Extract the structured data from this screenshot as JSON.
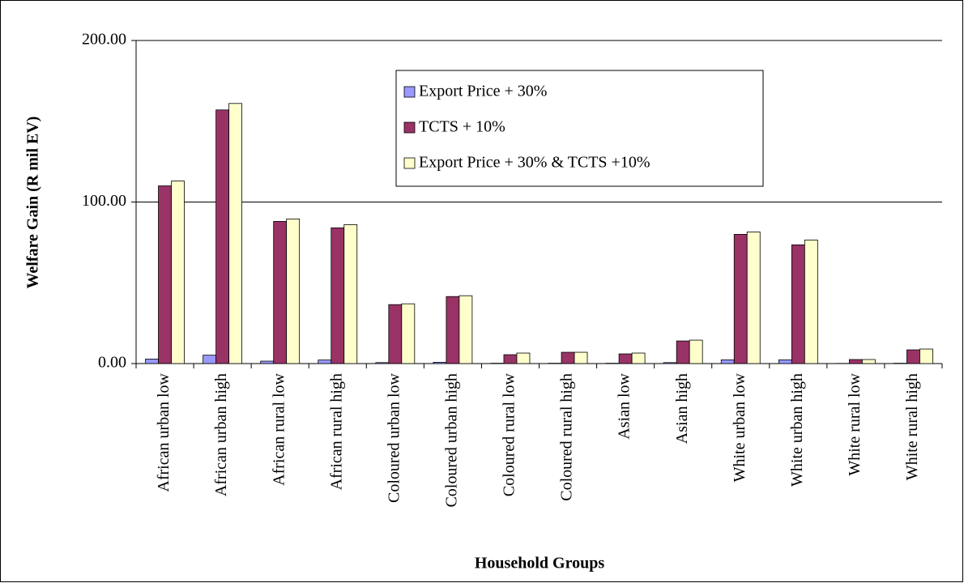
{
  "chart_data": {
    "type": "bar",
    "x_label": "Household Groups",
    "y_label": "Welfare Gain (R mil EV)",
    "categories": [
      "African urban low",
      "African urban high",
      "African rural low",
      "African rural high",
      "Coloured urban low",
      "Coloured urban high",
      "Coloured rural low",
      "Coloured rural high",
      "Asian low",
      "Asian high",
      "White urban low",
      "White urban high",
      "White rural low",
      "White rural high"
    ],
    "series": [
      {
        "name": "Export Price + 30%",
        "color": "#9999ff",
        "values": [
          2.8,
          5.2,
          1.5,
          2.2,
          0.6,
          0.8,
          0.2,
          0.2,
          0.2,
          0.6,
          2.3,
          2.3,
          0.1,
          0.2
        ]
      },
      {
        "name": "TCTS + 10%",
        "color": "#993366",
        "values": [
          110,
          157,
          88,
          84,
          36.5,
          41.5,
          5.5,
          7,
          6,
          14,
          80,
          73.5,
          2.5,
          8.5
        ]
      },
      {
        "name": "Export Price + 30% & TCTS +10%",
        "color": "#ffffcc",
        "values": [
          113,
          161,
          89.5,
          86,
          37,
          42,
          6.5,
          7,
          6.5,
          14.5,
          81.5,
          76.5,
          2.5,
          9
        ]
      }
    ],
    "ylim": [
      0,
      200
    ],
    "yticks": [
      {
        "value": 0,
        "label": "0.00"
      },
      {
        "value": 100,
        "label": "100.00"
      },
      {
        "value": 200,
        "label": "200.00"
      }
    ],
    "grid": true,
    "legend": "top-center"
  }
}
